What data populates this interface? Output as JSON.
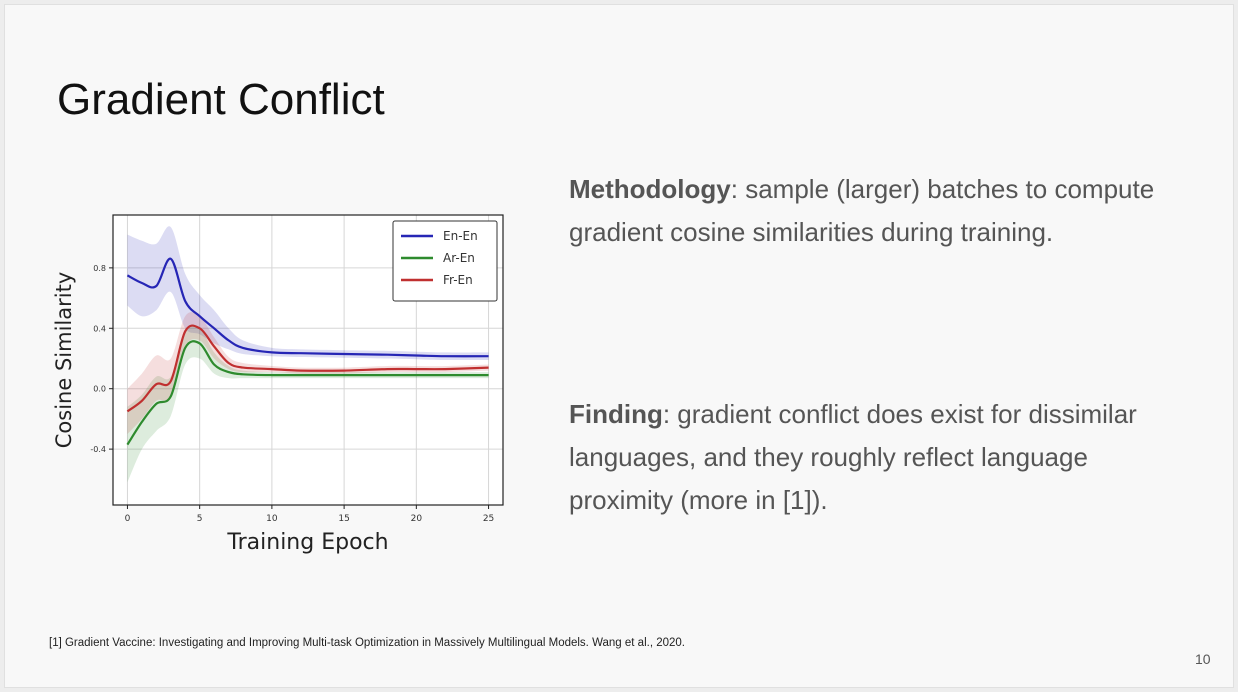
{
  "slide": {
    "title": "Gradient Conflict",
    "methodology": {
      "label": "Methodology",
      "text": ": sample (larger) batches to compute gradient cosine similarities during training."
    },
    "finding": {
      "label": "Finding",
      "text": ": gradient conflict does exist for dissimilar languages, and they roughly reflect language proximity (more in [1])."
    },
    "footnote": "[1] Gradient Vaccine: Investigating and Improving Multi-task Optimization in Massively Multilingual Models. Wang et al., 2020.",
    "page_number": "10"
  },
  "chart_data": {
    "type": "line",
    "title": "",
    "xlabel": "Training Epoch",
    "ylabel": "Cosine Similarity",
    "xlim": [
      -1,
      26
    ],
    "ylim": [
      -0.77,
      1.15
    ],
    "xticks": [
      0,
      5,
      10,
      15,
      20,
      25
    ],
    "yticks": [
      -0.4,
      0.0,
      0.4,
      0.8
    ],
    "ytick_labels": [
      "-0.4",
      "0.0",
      "0.4",
      "0.8"
    ],
    "grid": true,
    "legend_position": "top-right",
    "x": [
      0,
      1,
      2,
      3,
      4,
      5,
      6,
      7,
      8,
      10,
      12,
      15,
      18,
      20,
      22,
      25
    ],
    "series": [
      {
        "name": "En-En",
        "color": "#2626b5",
        "values": [
          0.75,
          0.7,
          0.68,
          0.86,
          0.58,
          0.48,
          0.4,
          0.32,
          0.27,
          0.24,
          0.235,
          0.23,
          0.225,
          0.22,
          0.215,
          0.215
        ],
        "lower": [
          0.55,
          0.48,
          0.52,
          0.64,
          0.4,
          0.36,
          0.3,
          0.26,
          0.23,
          0.215,
          0.21,
          0.205,
          0.2,
          0.195,
          0.19,
          0.19
        ],
        "upper": [
          1.02,
          0.98,
          0.96,
          1.07,
          0.76,
          0.62,
          0.52,
          0.4,
          0.32,
          0.27,
          0.26,
          0.255,
          0.25,
          0.245,
          0.24,
          0.24
        ]
      },
      {
        "name": "Ar-En",
        "color": "#2e8b2e",
        "values": [
          -0.37,
          -0.22,
          -0.1,
          -0.05,
          0.27,
          0.3,
          0.16,
          0.11,
          0.095,
          0.09,
          0.09,
          0.09,
          0.09,
          0.09,
          0.09,
          0.09
        ],
        "lower": [
          -0.62,
          -0.4,
          -0.28,
          -0.18,
          0.16,
          0.2,
          0.1,
          0.07,
          0.07,
          0.07,
          0.07,
          0.07,
          0.07,
          0.07,
          0.07,
          0.07
        ],
        "upper": [
          -0.12,
          -0.04,
          0.08,
          0.08,
          0.38,
          0.4,
          0.24,
          0.15,
          0.12,
          0.11,
          0.11,
          0.11,
          0.11,
          0.11,
          0.11,
          0.11
        ]
      },
      {
        "name": "Fr-En",
        "color": "#c03030",
        "values": [
          -0.15,
          -0.08,
          0.03,
          0.05,
          0.38,
          0.4,
          0.28,
          0.17,
          0.14,
          0.13,
          0.12,
          0.12,
          0.13,
          0.13,
          0.13,
          0.14
        ],
        "lower": [
          -0.3,
          -0.2,
          -0.08,
          -0.05,
          0.28,
          0.32,
          0.2,
          0.13,
          0.11,
          0.11,
          0.1,
          0.1,
          0.11,
          0.11,
          0.11,
          0.12
        ],
        "upper": [
          0.0,
          0.1,
          0.22,
          0.2,
          0.48,
          0.48,
          0.34,
          0.21,
          0.17,
          0.15,
          0.14,
          0.14,
          0.15,
          0.15,
          0.15,
          0.16
        ]
      }
    ]
  }
}
